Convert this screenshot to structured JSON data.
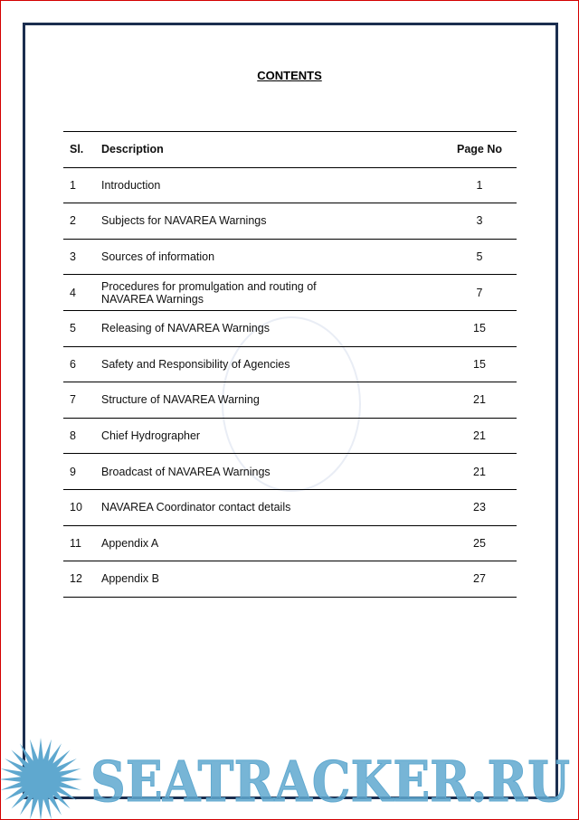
{
  "title": "CONTENTS",
  "table": {
    "headers": {
      "sl": "Sl.",
      "description": "Description",
      "page": "Page No"
    },
    "rows": [
      {
        "sl": "1",
        "description": "Introduction",
        "page": "1"
      },
      {
        "sl": "2",
        "description": "Subjects for NAVAREA Warnings",
        "page": "3"
      },
      {
        "sl": "3",
        "description": "Sources of information",
        "page": "5"
      },
      {
        "sl": "4",
        "description": "Procedures for promulgation and routing of NAVAREA Warnings",
        "page": "7"
      },
      {
        "sl": "5",
        "description": "Releasing of NAVAREA Warnings",
        "page": "15"
      },
      {
        "sl": "6",
        "description": "Safety and Responsibility of Agencies",
        "page": "15"
      },
      {
        "sl": "7",
        "description": "Structure of NAVAREA Warning",
        "page": "21"
      },
      {
        "sl": "8",
        "description": "Chief Hydrographer",
        "page": "21"
      },
      {
        "sl": "9",
        "description": "Broadcast of NAVAREA Warnings",
        "page": "21"
      },
      {
        "sl": "10",
        "description": "NAVAREA Coordinator contact details",
        "page": "23"
      },
      {
        "sl": "11",
        "description": "Appendix A",
        "page": "25"
      },
      {
        "sl": "12",
        "description": "Appendix B",
        "page": "27"
      }
    ]
  },
  "watermark": {
    "text": "SEATRACKER.RU",
    "color": "#5fa8cf"
  },
  "colors": {
    "frame": "#1b2e4f",
    "outer_border": "#d40000"
  }
}
